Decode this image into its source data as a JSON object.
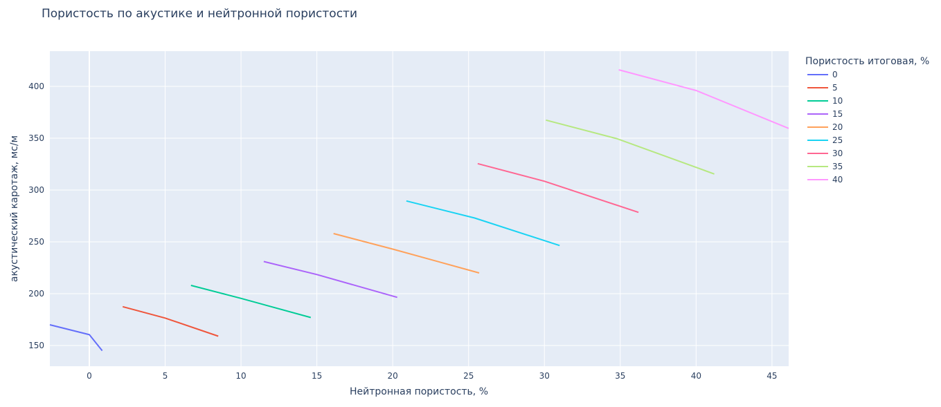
{
  "chart_data": {
    "type": "line",
    "title": "Пористость по акустике и нейтронной пористости",
    "xlabel": "Нейтронная пористость, %",
    "ylabel": "акустический каротаж, мс/м",
    "xlim": [
      -2.6,
      46.1
    ],
    "ylim": [
      130,
      434
    ],
    "x_ticks": [
      0,
      5,
      10,
      15,
      20,
      25,
      30,
      35,
      40,
      45
    ],
    "y_ticks": [
      150,
      200,
      250,
      300,
      350,
      400
    ],
    "grid": true,
    "legend": {
      "title": "Пористость итоговая, %",
      "placement": "right"
    },
    "series": [
      {
        "name": "0",
        "color": "#636efa",
        "x": [
          -2.6,
          0.0,
          0.85
        ],
        "y": [
          170,
          160.5,
          145
        ]
      },
      {
        "name": "5",
        "color": "#ef553b",
        "x": [
          2.2,
          5.0,
          8.5
        ],
        "y": [
          187.5,
          176.5,
          159
        ]
      },
      {
        "name": "10",
        "color": "#00cc96",
        "x": [
          6.7,
          10.0,
          14.6
        ],
        "y": [
          208,
          195.5,
          177
        ]
      },
      {
        "name": "15",
        "color": "#ab63fa",
        "x": [
          11.5,
          15.0,
          20.3
        ],
        "y": [
          231,
          218.5,
          196.5
        ]
      },
      {
        "name": "20",
        "color": "#ffa15a",
        "x": [
          16.1,
          20.0,
          25.7
        ],
        "y": [
          258,
          243,
          220
        ]
      },
      {
        "name": "25",
        "color": "#19d3f3",
        "x": [
          20.9,
          25.4,
          31.0
        ],
        "y": [
          289.5,
          273,
          246.5
        ]
      },
      {
        "name": "30",
        "color": "#ff6692",
        "x": [
          25.6,
          30.0,
          36.2
        ],
        "y": [
          325.5,
          308.5,
          278.5
        ]
      },
      {
        "name": "35",
        "color": "#b6e880",
        "x": [
          30.1,
          34.8,
          41.2
        ],
        "y": [
          367.5,
          349.5,
          315.5
        ]
      },
      {
        "name": "40",
        "color": "#ff97ff",
        "x": [
          34.9,
          40.0,
          46.1
        ],
        "y": [
          416,
          396,
          359.5
        ]
      }
    ]
  }
}
